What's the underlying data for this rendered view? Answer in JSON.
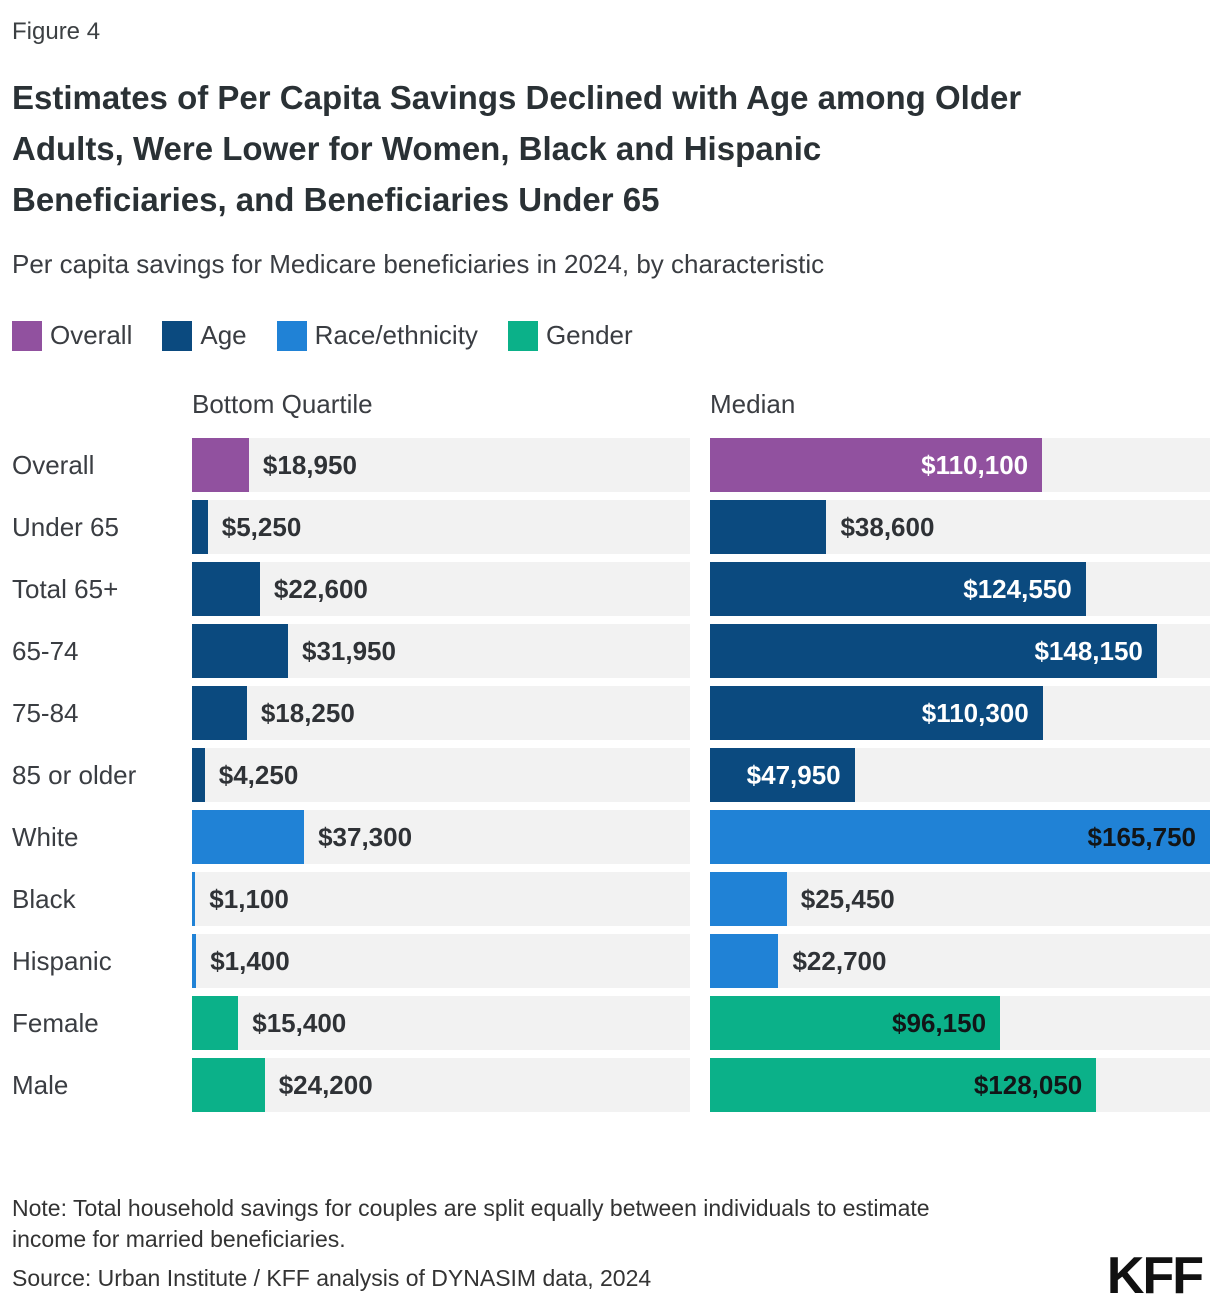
{
  "figure_label": "Figure 4",
  "title": "Estimates of Per Capita Savings Declined with Age among Older Adults, Were Lower for Women, Black and Hispanic Beneficiaries, and Beneficiaries Under 65",
  "subtitle": "Per capita savings for Medicare beneficiaries in 2024, by characteristic",
  "legend": [
    {
      "label": "Overall",
      "color": "#91519F"
    },
    {
      "label": "Age",
      "color": "#0B4A7F"
    },
    {
      "label": "Race/ethnicity",
      "color": "#2082D6"
    },
    {
      "label": "Gender",
      "color": "#0BB189"
    }
  ],
  "note": "Note: Total household savings for couples are split equally between individuals to estimate income for married beneficiaries.",
  "source": "Source: Urban Institute / KFF analysis of DYNASIM data, 2024",
  "logo_text": "KFF",
  "chart_data": {
    "type": "bar",
    "orientation": "horizontal",
    "title": "Per capita savings for Medicare beneficiaries in 2024, by characteristic",
    "categories": [
      "Overall",
      "Under 65",
      "Total 65+",
      "65-74",
      "75-84",
      "85 or older",
      "White",
      "Black",
      "Hispanic",
      "Female",
      "Male"
    ],
    "category_groups": [
      "Overall",
      "Age",
      "Age",
      "Age",
      "Age",
      "Age",
      "Race/ethnicity",
      "Race/ethnicity",
      "Race/ethnicity",
      "Gender",
      "Gender"
    ],
    "group_colors": {
      "Overall": "#91519F",
      "Age": "#0B4A7F",
      "Race/ethnicity": "#2082D6",
      "Gender": "#0BB189"
    },
    "group_inside_label_colors": {
      "Overall": "#FFFFFF",
      "Age": "#FFFFFF",
      "Race/ethnicity": "#121517",
      "Gender": "#121517"
    },
    "series": [
      {
        "name": "Bottom Quartile",
        "values": [
          18950,
          5250,
          22600,
          31950,
          18250,
          4250,
          37300,
          1100,
          1400,
          15400,
          24200
        ],
        "labels": [
          "$18,950",
          "$5,250",
          "$22,600",
          "$31,950",
          "$18,250",
          "$4,250",
          "$37,300",
          "$1,100",
          "$1,400",
          "$15,400",
          "$24,200"
        ],
        "label_placement": [
          "outside",
          "outside",
          "outside",
          "outside",
          "outside",
          "outside",
          "outside",
          "outside",
          "outside",
          "outside",
          "outside"
        ]
      },
      {
        "name": "Median",
        "values": [
          110100,
          38600,
          124550,
          148150,
          110300,
          47950,
          165750,
          25450,
          22700,
          96150,
          128050
        ],
        "labels": [
          "$110,100",
          "$38,600",
          "$124,550",
          "$148,150",
          "$110,300",
          "$47,950",
          "$165,750",
          "$25,450",
          "$22,700",
          "$96,150",
          "$128,050"
        ],
        "label_placement": [
          "inside",
          "outside",
          "inside",
          "inside",
          "inside",
          "inside",
          "inside",
          "outside",
          "outside",
          "inside",
          "inside"
        ]
      }
    ],
    "xmax": 165750,
    "track_color": "#F2F2F2",
    "grid": false,
    "legend_position": "top-left"
  }
}
